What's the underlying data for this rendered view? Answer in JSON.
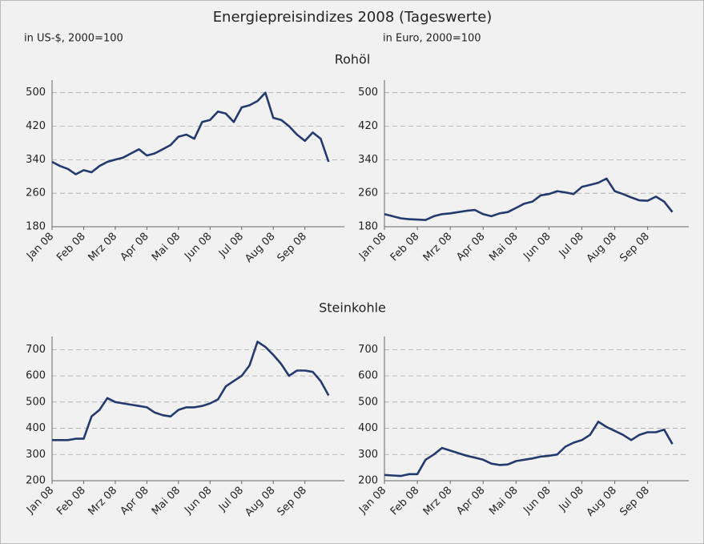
{
  "title": "Energiepreisindizes 2008 (Tageswerte)",
  "units": [
    "in US-$, 2000=100",
    "in Euro, 2000=100"
  ],
  "sections": [
    "Rohöl",
    "Steinkohle"
  ],
  "chart_data": [
    {
      "type": "line",
      "categories": [
        "Jan 08",
        null,
        null,
        null,
        "Feb 08",
        null,
        null,
        null,
        "Mrz 08",
        null,
        null,
        null,
        "Apr 08",
        null,
        null,
        null,
        "Mai 08",
        null,
        null,
        null,
        "Jun 08",
        null,
        null,
        null,
        "Jul 08",
        null,
        null,
        null,
        "Aug 08",
        null,
        null,
        null,
        "Sep 08",
        null,
        null,
        null
      ],
      "values": [
        335,
        325,
        318,
        305,
        315,
        310,
        325,
        335,
        340,
        345,
        355,
        365,
        350,
        355,
        365,
        375,
        395,
        400,
        390,
        430,
        435,
        455,
        450,
        430,
        465,
        470,
        480,
        500,
        440,
        435,
        420,
        400,
        385,
        405,
        390,
        335
      ],
      "color": "#233a6e",
      "ylim": [
        180,
        530
      ],
      "yticks": [
        180,
        260,
        340,
        420,
        500
      ],
      "grid": true
    },
    {
      "type": "line",
      "categories": [
        "Jan 08",
        null,
        null,
        null,
        "Feb 08",
        null,
        null,
        null,
        "Mrz 08",
        null,
        null,
        null,
        "Apr 08",
        null,
        null,
        null,
        "Mai 08",
        null,
        null,
        null,
        "Jun 08",
        null,
        null,
        null,
        "Jul 08",
        null,
        null,
        null,
        "Aug 08",
        null,
        null,
        null,
        "Sep 08",
        null,
        null,
        null
      ],
      "values": [
        210,
        205,
        200,
        198,
        197,
        196,
        205,
        210,
        212,
        215,
        218,
        220,
        210,
        205,
        212,
        215,
        225,
        235,
        240,
        255,
        258,
        265,
        262,
        258,
        275,
        280,
        285,
        295,
        265,
        258,
        250,
        243,
        242,
        252,
        240,
        215
      ],
      "color": "#233a6e",
      "ylim": [
        180,
        530
      ],
      "yticks": [
        180,
        260,
        340,
        420,
        500
      ],
      "grid": true
    },
    {
      "type": "line",
      "categories": [
        "Jan 08",
        null,
        null,
        null,
        "Feb 08",
        null,
        null,
        null,
        "Mrz 08",
        null,
        null,
        null,
        "Apr 08",
        null,
        null,
        null,
        "Mai 08",
        null,
        null,
        null,
        "Jun 08",
        null,
        null,
        null,
        "Jul 08",
        null,
        null,
        null,
        "Aug 08",
        null,
        null,
        null,
        "Sep 08",
        null,
        null,
        null
      ],
      "values": [
        355,
        355,
        355,
        360,
        360,
        445,
        470,
        515,
        500,
        495,
        490,
        485,
        480,
        460,
        450,
        445,
        470,
        480,
        480,
        485,
        495,
        510,
        560,
        580,
        600,
        640,
        730,
        710,
        680,
        645,
        600,
        620,
        620,
        615,
        580,
        525
      ],
      "color": "#233a6e",
      "ylim": [
        200,
        750
      ],
      "yticks": [
        200,
        300,
        400,
        500,
        600,
        700
      ],
      "grid": true
    },
    {
      "type": "line",
      "categories": [
        "Jan 08",
        null,
        null,
        null,
        "Feb 08",
        null,
        null,
        null,
        "Mrz 08",
        null,
        null,
        null,
        "Apr 08",
        null,
        null,
        null,
        "Mai 08",
        null,
        null,
        null,
        "Jun 08",
        null,
        null,
        null,
        "Jul 08",
        null,
        null,
        null,
        "Aug 08",
        null,
        null,
        null,
        "Sep 08",
        null,
        null,
        null
      ],
      "values": [
        222,
        220,
        218,
        225,
        225,
        280,
        300,
        325,
        315,
        305,
        295,
        288,
        280,
        265,
        260,
        262,
        275,
        280,
        285,
        292,
        295,
        300,
        330,
        345,
        355,
        375,
        425,
        405,
        390,
        375,
        355,
        375,
        385,
        385,
        395,
        340
      ],
      "color": "#233a6e",
      "ylim": [
        200,
        750
      ],
      "yticks": [
        200,
        300,
        400,
        500,
        600,
        700
      ],
      "grid": true
    }
  ]
}
